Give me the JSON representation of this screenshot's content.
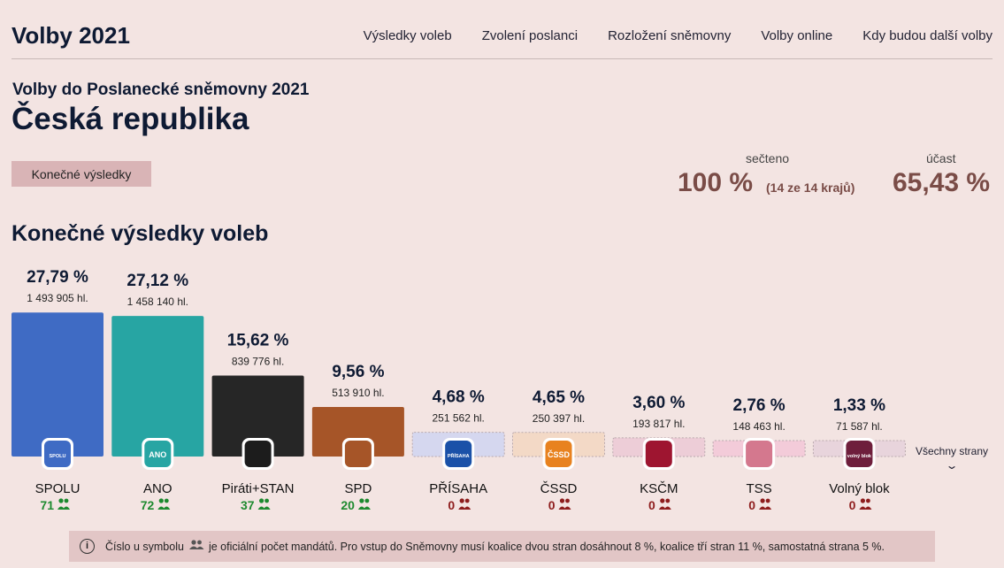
{
  "header": {
    "brand": "Volby 2021",
    "nav": [
      "Výsledky voleb",
      "Zvolení poslanci",
      "Rozložení sněmovny",
      "Volby online",
      "Kdy budou další volby"
    ]
  },
  "page": {
    "subtitle": "Volby do Poslanecké sněmovny 2021",
    "title": "Česká republika",
    "final_button": "Konečné výsledky",
    "section_title": "Konečné výsledky voleb",
    "all_parties_link": "Všechny strany"
  },
  "stats": {
    "counted_label": "sečteno",
    "counted_value": "100 %",
    "counted_note": "(14 ze 14 krajů)",
    "turnout_label": "účast",
    "turnout_value": "65,43 %"
  },
  "chart_data": {
    "type": "bar",
    "categories": [
      "SPOLU",
      "ANO",
      "Piráti+STAN",
      "SPD",
      "PŘÍSAHA",
      "ČSSD",
      "KSČM",
      "TSS",
      "Volný blok"
    ],
    "values": [
      27.79,
      27.12,
      15.62,
      9.56,
      4.68,
      4.65,
      3.6,
      2.76,
      1.33
    ],
    "value_labels": [
      "27,79 %",
      "27,12 %",
      "15,62 %",
      "9,56 %",
      "4,68 %",
      "4,65 %",
      "3,60 %",
      "2,76 %",
      "1,33 %"
    ],
    "votes": [
      "1 493 905 hl.",
      "1 458 140 hl.",
      "839 776 hl.",
      "513 910 hl.",
      "251 562 hl.",
      "250 397 hl.",
      "193 817 hl.",
      "148 463 hl.",
      "71 587 hl."
    ],
    "seats": [
      71,
      72,
      37,
      20,
      0,
      0,
      0,
      0,
      0
    ],
    "logo_texts": [
      "SPOLU",
      "ANO",
      "",
      "",
      "PŘÍSAHA",
      "ČSSD",
      "",
      "",
      "volný blok"
    ],
    "colors": [
      "#3f6bc4",
      "#27a5a3",
      "#262626",
      "#a65528",
      "#d5d7ef",
      "#f3d9c6",
      "#edcdd7",
      "#f3cbd9",
      "#e8d4dc"
    ],
    "logo_colors": [
      "#3f6bc4",
      "#27a5a3",
      "#1c1c1c",
      "#a65528",
      "#1a51a8",
      "#e8821f",
      "#9e1530",
      "#d4788e",
      "#6e1e3c"
    ],
    "passed": [
      true,
      true,
      true,
      true,
      false,
      false,
      false,
      false,
      false
    ],
    "ylim": [
      0,
      28
    ]
  },
  "note": {
    "before_icon": "Číslo u symbolu",
    "after_icon": "je oficiální počet mandátů. Pro vstup do Sněmovny musí koalice dvou stran dosáhnout 8 %, koalice tří stran 11 %, samostatná strana 5 %."
  }
}
